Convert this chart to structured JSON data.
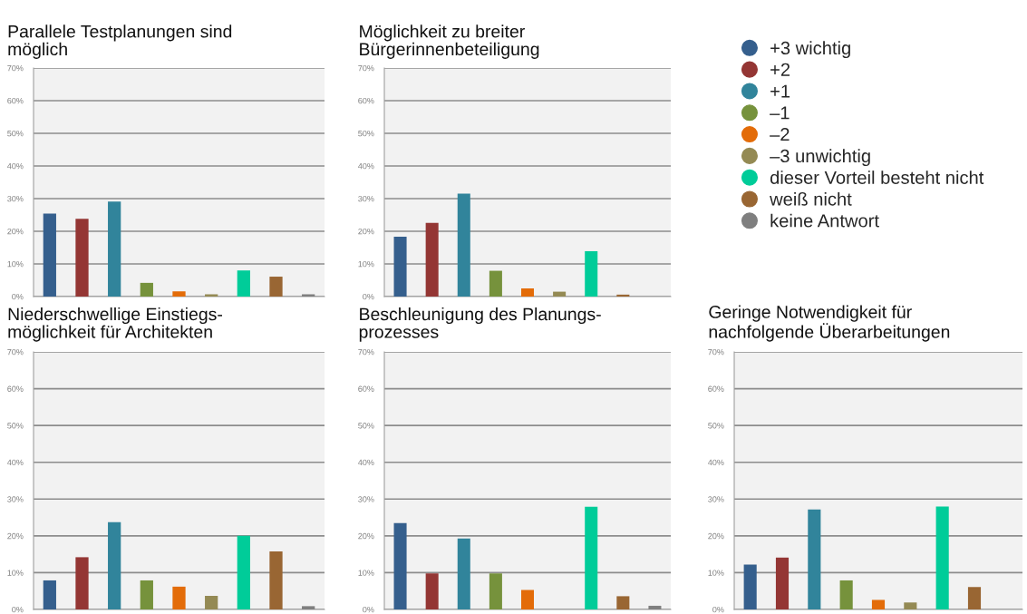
{
  "chart_data": [
    {
      "type": "bar",
      "title": "Parallele Testplanungen sind\nmöglich",
      "categories": [
        null
      ],
      "ylim": [
        0,
        70
      ],
      "yticks": [
        {
          "value": 0,
          "label": "0%"
        },
        {
          "value": 10,
          "label": "10%"
        },
        {
          "value": 20,
          "label": "20%"
        },
        {
          "value": 30,
          "label": "30%"
        },
        {
          "value": 40,
          "label": "40%"
        },
        {
          "value": 50,
          "label": "50%"
        },
        {
          "value": 60,
          "label": "60%"
        },
        {
          "value": 70,
          "label": "70%"
        }
      ],
      "grid": "y",
      "legend": "right",
      "series": [
        {
          "name": "+3 wichtig",
          "color": "#355f8d",
          "values": [
            25.4
          ]
        },
        {
          "name": "+2",
          "color": "#943634",
          "values": [
            23.8
          ]
        },
        {
          "name": "+1",
          "color": "#31849b",
          "values": [
            29.1
          ]
        },
        {
          "name": "–1",
          "color": "#76923c",
          "values": [
            4.2
          ]
        },
        {
          "name": "–2",
          "color": "#e36c09",
          "values": [
            1.6
          ]
        },
        {
          "name": "–3 unwichtig",
          "color": "#948a54",
          "values": [
            0.7
          ]
        },
        {
          "name": "dieser Vorteil besteht nicht",
          "color": "#00cc99",
          "values": [
            8.0
          ]
        },
        {
          "name": "weiß nicht",
          "color": "#996633",
          "values": [
            6.1
          ]
        },
        {
          "name": "keine Antwort",
          "color": "#7f7f7f",
          "values": [
            0.7
          ]
        }
      ]
    },
    {
      "type": "bar",
      "title": "Möglichkeit zu breiter\nBürgerinnenbeteiligung",
      "categories": [
        null
      ],
      "ylim": [
        0,
        70
      ],
      "yticks": [
        {
          "value": 0,
          "label": "0%"
        },
        {
          "value": 10,
          "label": "10%"
        },
        {
          "value": 20,
          "label": "20%"
        },
        {
          "value": 30,
          "label": "30%"
        },
        {
          "value": 40,
          "label": "40%"
        },
        {
          "value": 50,
          "label": "50%"
        },
        {
          "value": 60,
          "label": "60%"
        },
        {
          "value": 70,
          "label": "70%"
        }
      ],
      "grid": "y",
      "series": [
        {
          "color": "#355f8d",
          "values": [
            18.3
          ]
        },
        {
          "color": "#943634",
          "values": [
            22.6
          ]
        },
        {
          "color": "#31849b",
          "values": [
            31.5
          ]
        },
        {
          "color": "#76923c",
          "values": [
            7.9
          ]
        },
        {
          "color": "#e36c09",
          "values": [
            2.5
          ]
        },
        {
          "color": "#948a54",
          "values": [
            1.5
          ]
        },
        {
          "color": "#00cc99",
          "values": [
            13.9
          ]
        },
        {
          "color": "#996633",
          "values": [
            0.6
          ]
        },
        {
          "color": "#7f7f7f",
          "values": [
            0
          ]
        }
      ]
    },
    {
      "type": "bar",
      "title": "Niederschwellige Einstiegs-\nmöglichkeit für Architekten",
      "categories": [
        null
      ],
      "ylim": [
        0,
        70
      ],
      "yticks": [
        {
          "value": 0,
          "label": "0%"
        },
        {
          "value": 10,
          "label": "10%"
        },
        {
          "value": 20,
          "label": "20%"
        },
        {
          "value": 30,
          "label": "30%"
        },
        {
          "value": 40,
          "label": "40%"
        },
        {
          "value": 50,
          "label": "50%"
        },
        {
          "value": 60,
          "label": "60%"
        },
        {
          "value": 70,
          "label": "70%"
        }
      ],
      "grid": "y",
      "series": [
        {
          "color": "#355f8d",
          "values": [
            7.9
          ]
        },
        {
          "color": "#943634",
          "values": [
            14.2
          ]
        },
        {
          "color": "#31849b",
          "values": [
            23.7
          ]
        },
        {
          "color": "#76923c",
          "values": [
            7.9
          ]
        },
        {
          "color": "#e36c09",
          "values": [
            6.2
          ]
        },
        {
          "color": "#948a54",
          "values": [
            3.7
          ]
        },
        {
          "color": "#00cc99",
          "values": [
            20.0
          ]
        },
        {
          "color": "#996633",
          "values": [
            15.8
          ]
        },
        {
          "color": "#7f7f7f",
          "values": [
            0.9
          ]
        }
      ]
    },
    {
      "type": "bar",
      "title": "Beschleunigung des Planungs-\nprozesses",
      "categories": [
        null
      ],
      "ylim": [
        0,
        70
      ],
      "yticks": [
        {
          "value": 0,
          "label": "0%"
        },
        {
          "value": 10,
          "label": "10%"
        },
        {
          "value": 20,
          "label": "20%"
        },
        {
          "value": 30,
          "label": "30%"
        },
        {
          "value": 40,
          "label": "40%"
        },
        {
          "value": 50,
          "label": "50%"
        },
        {
          "value": 60,
          "label": "60%"
        },
        {
          "value": 70,
          "label": "70%"
        }
      ],
      "grid": "y",
      "series": [
        {
          "color": "#355f8d",
          "values": [
            23.5
          ]
        },
        {
          "color": "#943634",
          "values": [
            9.8
          ]
        },
        {
          "color": "#31849b",
          "values": [
            19.3
          ]
        },
        {
          "color": "#76923c",
          "values": [
            9.8
          ]
        },
        {
          "color": "#e36c09",
          "values": [
            5.3
          ]
        },
        {
          "color": "#948a54",
          "values": [
            0
          ]
        },
        {
          "color": "#00cc99",
          "values": [
            27.9
          ]
        },
        {
          "color": "#996633",
          "values": [
            3.6
          ]
        },
        {
          "color": "#7f7f7f",
          "values": [
            1.0
          ]
        }
      ]
    },
    {
      "type": "bar",
      "title": "Geringe Notwendigkeit für\nnachfolgende Überarbeitungen",
      "categories": [
        null
      ],
      "ylim": [
        0,
        70
      ],
      "yticks": [
        {
          "value": 0,
          "label": "0%"
        },
        {
          "value": 10,
          "label": "10%"
        },
        {
          "value": 20,
          "label": "20%"
        },
        {
          "value": 30,
          "label": "30%"
        },
        {
          "value": 40,
          "label": "40%"
        },
        {
          "value": 50,
          "label": "50%"
        },
        {
          "value": 60,
          "label": "60%"
        },
        {
          "value": 70,
          "label": "70%"
        }
      ],
      "grid": "y",
      "series": [
        {
          "color": "#355f8d",
          "values": [
            12.2
          ]
        },
        {
          "color": "#943634",
          "values": [
            14.1
          ]
        },
        {
          "color": "#31849b",
          "values": [
            27.2
          ]
        },
        {
          "color": "#76923c",
          "values": [
            7.9
          ]
        },
        {
          "color": "#e36c09",
          "values": [
            2.6
          ]
        },
        {
          "color": "#948a54",
          "values": [
            1.9
          ]
        },
        {
          "color": "#00cc99",
          "values": [
            28.0
          ]
        },
        {
          "color": "#996633",
          "values": [
            6.1
          ]
        },
        {
          "color": "#7f7f7f",
          "values": [
            0
          ]
        }
      ]
    }
  ]
}
